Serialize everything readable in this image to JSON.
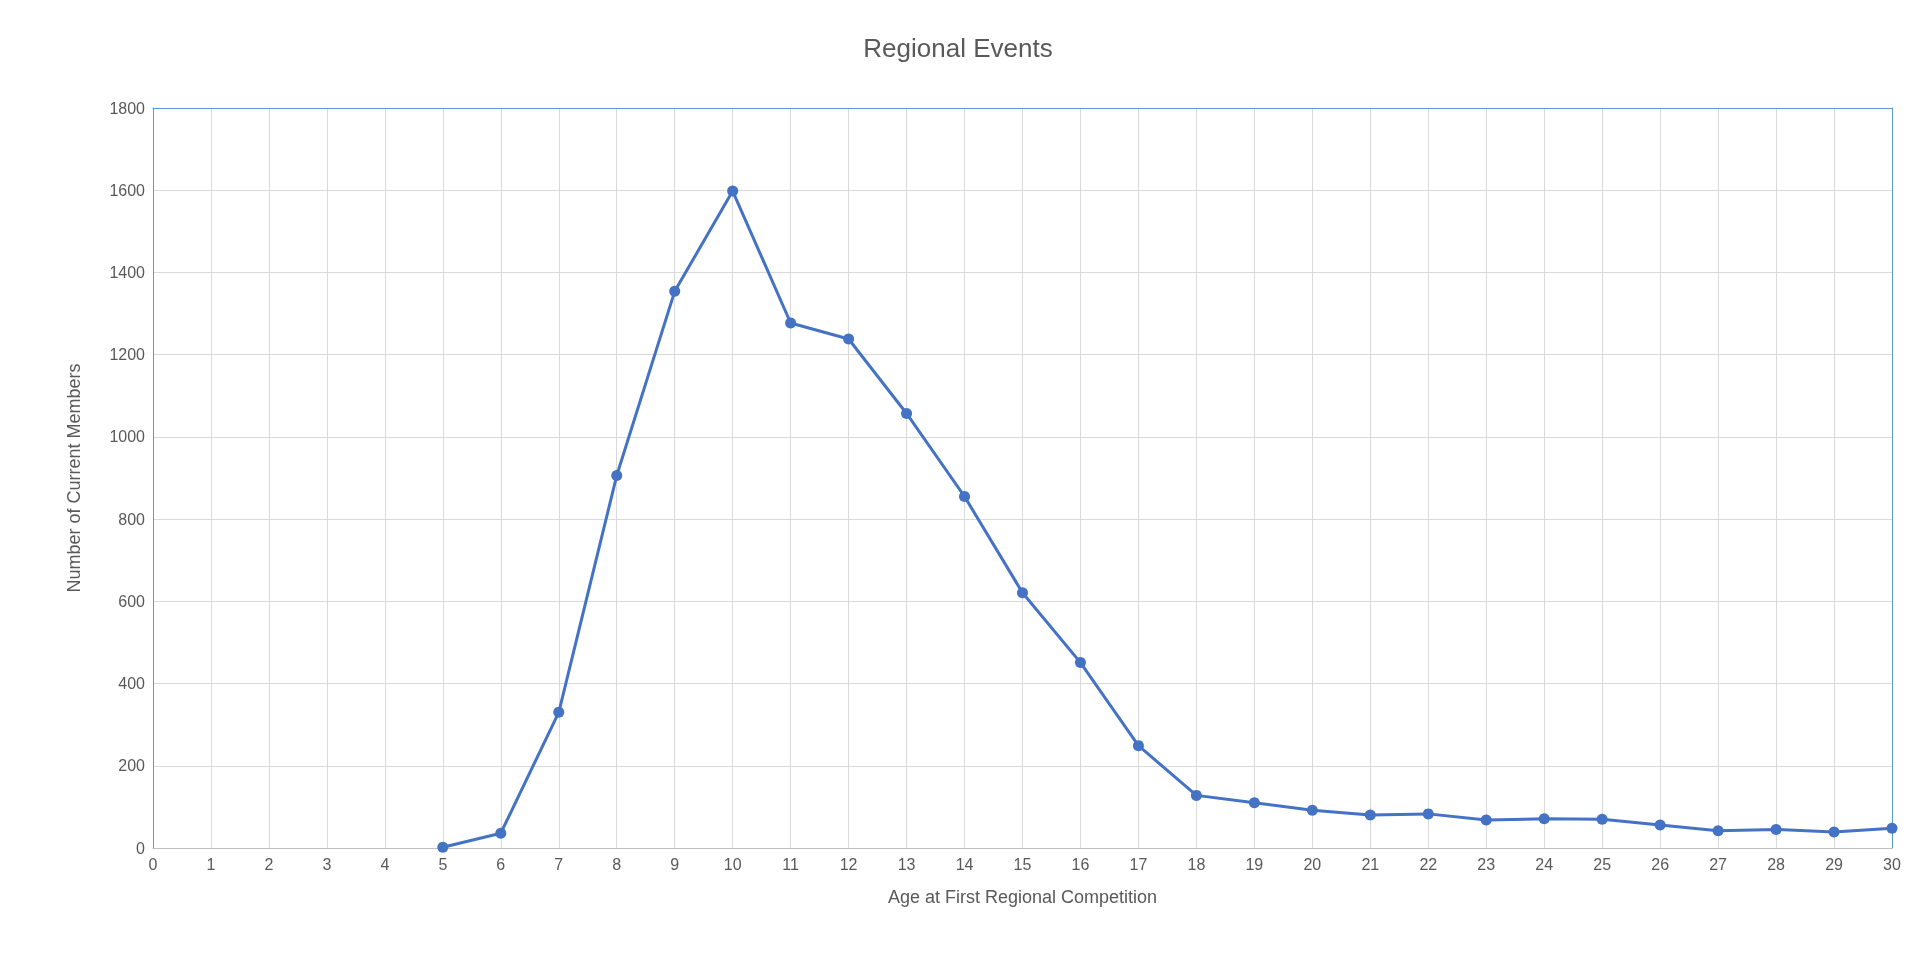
{
  "chart_data": {
    "type": "line",
    "title": "Regional Events",
    "xlabel": "Age at First Regional Competition",
    "ylabel": "Number of Current Members",
    "x": [
      5,
      6,
      7,
      8,
      9,
      10,
      11,
      12,
      13,
      14,
      15,
      16,
      17,
      18,
      19,
      20,
      21,
      22,
      23,
      24,
      25,
      26,
      27,
      28,
      29,
      30
    ],
    "series": [
      {
        "color": "#4472c4",
        "values": [
          2,
          36,
          330,
          906,
          1354,
          1598,
          1277,
          1238,
          1057,
          855,
          621,
          451,
          249,
          128,
          110,
          92,
          80,
          83,
          68,
          71,
          70,
          56,
          42,
          45,
          39,
          48
        ]
      }
    ],
    "xlim": [
      0,
      30
    ],
    "xticks": [
      0,
      1,
      2,
      3,
      4,
      5,
      6,
      7,
      8,
      9,
      10,
      11,
      12,
      13,
      14,
      15,
      16,
      17,
      18,
      19,
      20,
      21,
      22,
      23,
      24,
      25,
      26,
      27,
      28,
      29,
      30
    ],
    "ylim": [
      0,
      1800
    ],
    "yticks": [
      0,
      200,
      400,
      600,
      800,
      1000,
      1200,
      1400,
      1600,
      1800
    ],
    "grid": true,
    "marker": "circle",
    "line_style": "solid"
  }
}
